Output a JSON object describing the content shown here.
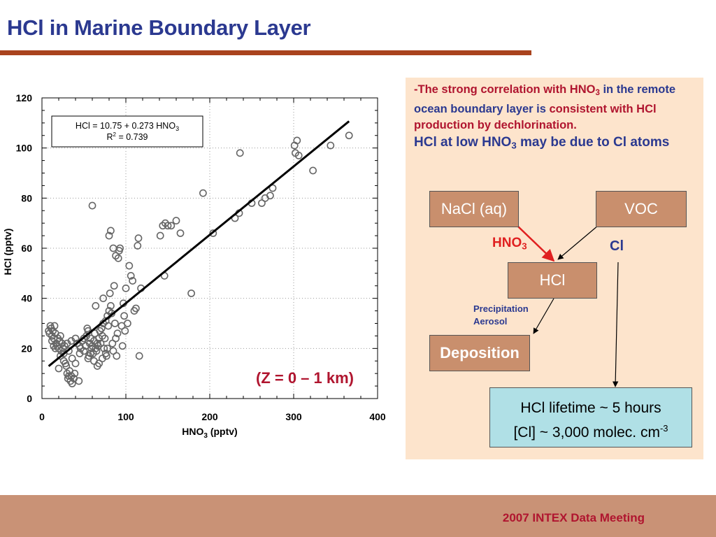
{
  "slide": {
    "title": "HCl in Marine Boundary Layer",
    "zone_label": "(Z = 0 – 1 km)",
    "footer": "2007 INTEX Data Meeting",
    "colors": {
      "title": "#2b3990",
      "accent_red": "#b0152f",
      "rule": "#a9431e",
      "panel_bg": "#fde4cc",
      "box_bg": "#c98f6d",
      "lifetime_bg": "#b0e0e6",
      "footer_bg": "#c99276"
    }
  },
  "panel": {
    "dash": "-",
    "t1": "The",
    "t2": " strong correlation with HNO",
    "sub3": "3",
    "t3": " in the remote ocean boundary layer is",
    "t4": " consistent with HCl production by dechlorination.",
    "t5": "HCl at low HNO",
    "t6": " may be due to Cl atoms"
  },
  "diagram": {
    "nacl": "NaCl (aq)",
    "voc": "VOC",
    "hcl": "HCl",
    "deposition": "Deposition",
    "hno3_label": "HNO",
    "hno3_sub": "3",
    "cl_label": "Cl",
    "precip_1": "Precipitation",
    "precip_2": "Aerosol",
    "lifetime_1": "HCl lifetime ~ 5 hours",
    "lifetime_2": "[Cl] ~ 3,000 molec. cm",
    "lifetime_sup": "-3"
  },
  "chart_data": {
    "type": "scatter",
    "xlabel": "HNO",
    "xlabel_sub": "3",
    "xlabel_unit": " (pptv)",
    "ylabel": "HCl (pptv)",
    "xlim": [
      0,
      400
    ],
    "ylim": [
      0,
      120
    ],
    "xticks": [
      0,
      100,
      200,
      300,
      400
    ],
    "yticks": [
      0,
      20,
      40,
      60,
      80,
      100,
      120
    ],
    "grid": true,
    "annotation_line1": "HCl = 10.75 + 0.273 HNO",
    "annotation_line1_sub": "3",
    "annotation_line2": "R",
    "annotation_line2_sup": "2",
    "annotation_line2_rest": " = 0.739",
    "fit": {
      "intercept": 10.75,
      "slope": 0.273,
      "x_range": [
        8,
        366
      ]
    },
    "points": [
      [
        8,
        27
      ],
      [
        9,
        26
      ],
      [
        10,
        29
      ],
      [
        11,
        28
      ],
      [
        12,
        25
      ],
      [
        13,
        27
      ],
      [
        14,
        24
      ],
      [
        15,
        29
      ],
      [
        16,
        26
      ],
      [
        17,
        22
      ],
      [
        18,
        21
      ],
      [
        19,
        24
      ],
      [
        20,
        20
      ],
      [
        21,
        23
      ],
      [
        22,
        25
      ],
      [
        23,
        19
      ],
      [
        24,
        22
      ],
      [
        25,
        20
      ],
      [
        26,
        18
      ],
      [
        27,
        21
      ],
      [
        28,
        14
      ],
      [
        29,
        13
      ],
      [
        30,
        10
      ],
      [
        31,
        8
      ],
      [
        32,
        9
      ],
      [
        33,
        11
      ],
      [
        34,
        7
      ],
      [
        35,
        9
      ],
      [
        36,
        6
      ],
      [
        38,
        8
      ],
      [
        39,
        10
      ],
      [
        40,
        24
      ],
      [
        42,
        22
      ],
      [
        44,
        7
      ],
      [
        45,
        18
      ],
      [
        46,
        20
      ],
      [
        48,
        23
      ],
      [
        50,
        19
      ],
      [
        52,
        21
      ],
      [
        53,
        25
      ],
      [
        54,
        28
      ],
      [
        55,
        27
      ],
      [
        56,
        17
      ],
      [
        57,
        22
      ],
      [
        58,
        24
      ],
      [
        59,
        20
      ],
      [
        60,
        21
      ],
      [
        61,
        18
      ],
      [
        62,
        23
      ],
      [
        63,
        26
      ],
      [
        64,
        20
      ],
      [
        65,
        19
      ],
      [
        66,
        22
      ],
      [
        67,
        21
      ],
      [
        68,
        24
      ],
      [
        69,
        27
      ],
      [
        70,
        22
      ],
      [
        71,
        28
      ],
      [
        72,
        25
      ],
      [
        73,
        30
      ],
      [
        74,
        20
      ],
      [
        75,
        24
      ],
      [
        76,
        31
      ],
      [
        77,
        17
      ],
      [
        78,
        33
      ],
      [
        79,
        29
      ],
      [
        80,
        35
      ],
      [
        81,
        42
      ],
      [
        82,
        37
      ],
      [
        83,
        34
      ],
      [
        84,
        22
      ],
      [
        85,
        19
      ],
      [
        86,
        45
      ],
      [
        87,
        30
      ],
      [
        88,
        24
      ],
      [
        89,
        17
      ],
      [
        90,
        26
      ],
      [
        91,
        56
      ],
      [
        92,
        59
      ],
      [
        93,
        60
      ],
      [
        95,
        29
      ],
      [
        96,
        21
      ],
      [
        97,
        38
      ],
      [
        98,
        33
      ],
      [
        99,
        27
      ],
      [
        100,
        44
      ],
      [
        102,
        30
      ],
      [
        104,
        53
      ],
      [
        106,
        49
      ],
      [
        108,
        47
      ],
      [
        110,
        35
      ],
      [
        112,
        36
      ],
      [
        114,
        61
      ],
      [
        115,
        64
      ],
      [
        116,
        17
      ],
      [
        118,
        44
      ],
      [
        60,
        77
      ],
      [
        64,
        37
      ],
      [
        73,
        40
      ],
      [
        80,
        65
      ],
      [
        82,
        67
      ],
      [
        85,
        60
      ],
      [
        88,
        57
      ],
      [
        141,
        65
      ],
      [
        144,
        69
      ],
      [
        147,
        70
      ],
      [
        150,
        69
      ],
      [
        154,
        69
      ],
      [
        160,
        71
      ],
      [
        165,
        66
      ],
      [
        146,
        49
      ],
      [
        178,
        42
      ],
      [
        192,
        82
      ],
      [
        204,
        66
      ],
      [
        230,
        72
      ],
      [
        235,
        74
      ],
      [
        236,
        98
      ],
      [
        250,
        78
      ],
      [
        262,
        78
      ],
      [
        266,
        80
      ],
      [
        272,
        81
      ],
      [
        275,
        84
      ],
      [
        301,
        101
      ],
      [
        304,
        103
      ],
      [
        302,
        98
      ],
      [
        306,
        97
      ],
      [
        323,
        91
      ],
      [
        344,
        101
      ],
      [
        366,
        105
      ],
      [
        36,
        16
      ],
      [
        40,
        14
      ],
      [
        20,
        12
      ],
      [
        30,
        22
      ],
      [
        45,
        21
      ],
      [
        50,
        24
      ],
      [
        55,
        16
      ],
      [
        58,
        18
      ],
      [
        62,
        15
      ],
      [
        66,
        13
      ],
      [
        68,
        14
      ],
      [
        72,
        16
      ],
      [
        76,
        18
      ],
      [
        78,
        20
      ],
      [
        12,
        23
      ],
      [
        14,
        21
      ],
      [
        16,
        20
      ],
      [
        22,
        17
      ],
      [
        26,
        15
      ],
      [
        32,
        19
      ],
      [
        35,
        23
      ]
    ]
  }
}
